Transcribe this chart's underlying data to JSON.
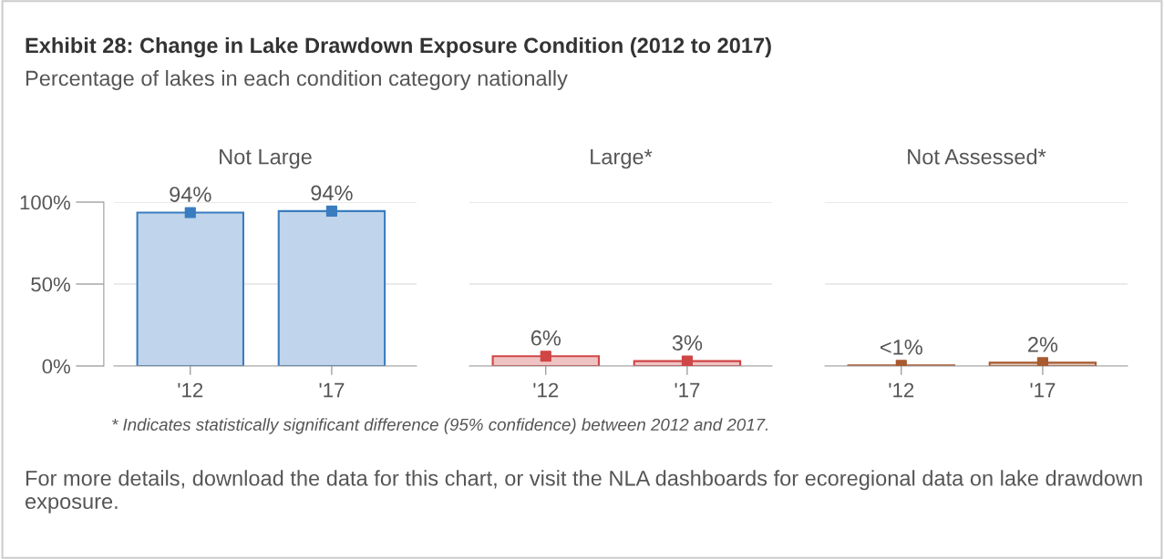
{
  "chart_data": [
    {
      "type": "bar",
      "title": "Not Large",
      "categories": [
        "'12",
        "'17"
      ],
      "series": [
        {
          "color": "#3a7cc0",
          "values": [
            93.6,
            94.5
          ],
          "value_labels": [
            "94%",
            "94%"
          ]
        },
        {
          "type": "scatter",
          "color": "#3a7cc0",
          "x": [
            "'12",
            "'17"
          ],
          "values": [
            93.6,
            94.5
          ],
          "marker": "square"
        }
      ],
      "ylim": [
        0,
        100
      ],
      "yticks": [
        {
          "value": 0,
          "label": "0%"
        },
        {
          "value": 50,
          "label": "50%"
        },
        {
          "value": 100,
          "label": "100%"
        }
      ],
      "grid": "y",
      "annotations": [
        "Exhibit 28: Change in Lake Drawdown Exposure Condition (2012 to 2017)",
        "Percentage of lakes in each condition category nationally",
        "* Indicates statistically significant difference (95% confidence) between 2012 and 2017.",
        "For more details, download the data for this chart, or visit the NLA dashboards for ecoregional data on lake drawdown exposure."
      ]
    },
    {
      "type": "bar",
      "title": "Large*",
      "categories": [
        "'12",
        "'17"
      ],
      "series": [
        {
          "color": "#d04545",
          "values": [
            6,
            3
          ],
          "value_labels": [
            "6%",
            "3%"
          ]
        },
        {
          "type": "scatter",
          "color": "#d04545",
          "x": [
            "'12",
            "'17"
          ],
          "values": [
            6,
            3
          ],
          "marker": "square"
        }
      ],
      "ylim": [
        0,
        100
      ],
      "yticks": [
        0,
        50,
        100
      ],
      "grid": "y",
      "tick_labels": "x"
    },
    {
      "type": "bar",
      "title": "Not Assessed*",
      "categories": [
        "'12",
        "'17"
      ],
      "series": [
        {
          "color": "#a85a30",
          "values": [
            0.4,
            2
          ],
          "value_labels": [
            "<1%",
            "2%"
          ]
        },
        {
          "type": "scatter",
          "color": "#a85a30",
          "x": [
            "'12",
            "'17"
          ],
          "values": [
            0.4,
            2
          ],
          "marker": "square"
        }
      ],
      "ylim": [
        0,
        100
      ],
      "yticks": [
        0,
        50,
        100
      ],
      "grid": "y",
      "tick_labels": "x"
    }
  ]
}
